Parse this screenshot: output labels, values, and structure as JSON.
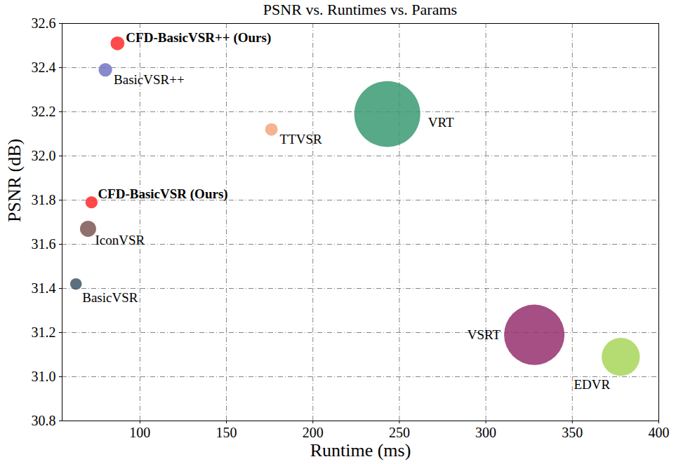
{
  "chart_data": {
    "type": "scatter",
    "title": "PSNR vs. Runtimes vs. Params",
    "x_label": "Runtime (ms)",
    "y_label": "PSNR (dB)",
    "categories": [
      "CFD-BasicVSR++ (Ours)",
      "BasicVSR++",
      "TTVSR",
      "VRT",
      "CFD-BasicVSR (Ours)",
      "IconVSR",
      "BasicVSR",
      "VSRT",
      "EDVR"
    ],
    "x": [
      87,
      80,
      176,
      243,
      72,
      70,
      63,
      328,
      378
    ],
    "values": [
      32.51,
      32.39,
      32.12,
      32.19,
      31.79,
      31.67,
      31.42,
      31.19,
      31.09
    ],
    "params": [
      7.5,
      7.3,
      6.8,
      35.6,
      6.6,
      8.7,
      6.3,
      32.6,
      20.6
    ],
    "colors": [
      "#ff2a2a",
      "#7474c4",
      "#f6a57e",
      "#3a9a72",
      "#ff2a2a",
      "#7e5656",
      "#3f5866",
      "#95306f",
      "#a8d65a"
    ],
    "xlim": [
      55,
      400
    ],
    "ylim": [
      30.8,
      32.6
    ],
    "xticks": [
      100,
      150,
      200,
      250,
      300,
      350,
      400
    ],
    "yticks": [
      30.8,
      {
        "value": 31.0,
        "label": "31.0"
      },
      31.2,
      31.4,
      31.6,
      31.8,
      {
        "value": 32.0,
        "label": "32.0"
      },
      32.2,
      32.4,
      32.6
    ],
    "grid": true
  }
}
